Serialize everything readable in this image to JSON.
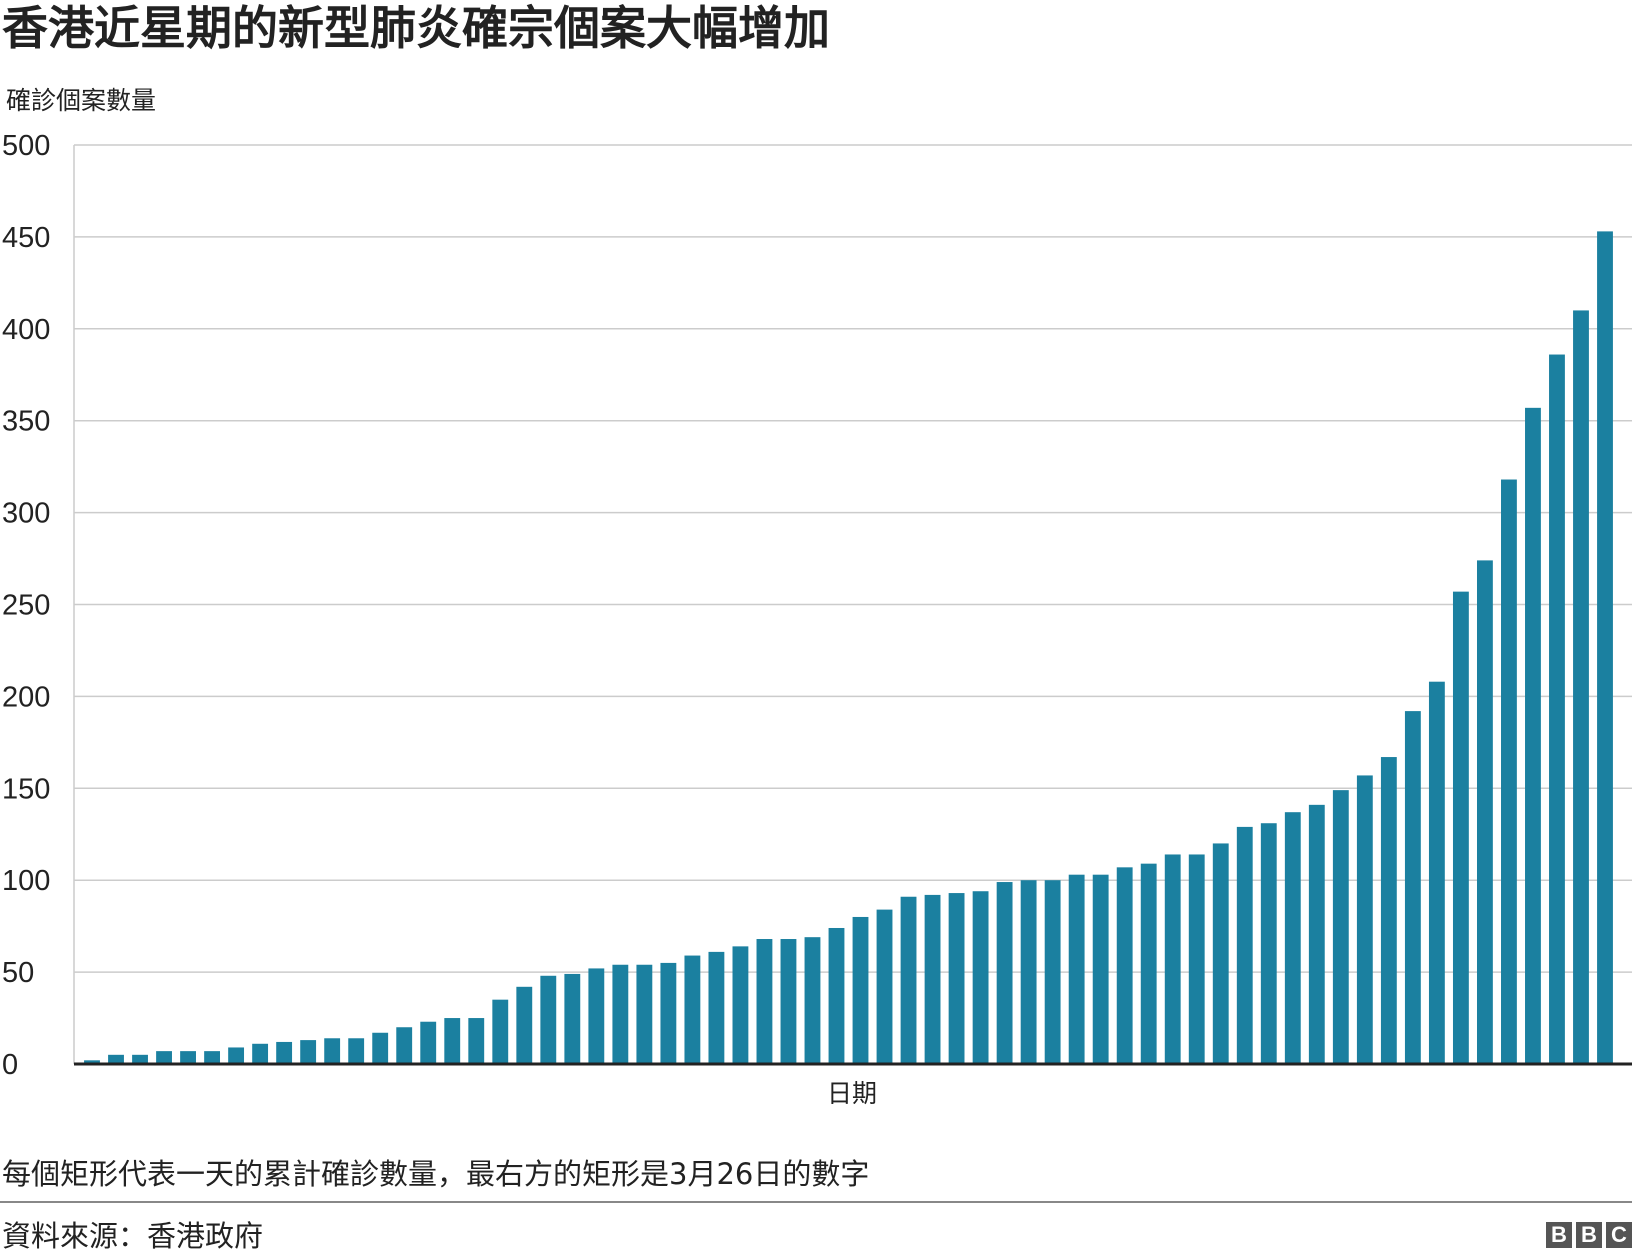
{
  "title": "香港近星期的新型肺炎確宗個案大幅增加",
  "note": "每個矩形代表一天的累計確診數量，最右方的矩形是3月26日的數字",
  "source": "資料來源：香港政府",
  "logo": {
    "letters": [
      "B",
      "B",
      "C"
    ]
  },
  "colors": {
    "bar": "#1b80a0",
    "grid": "#cccccc",
    "axis": "#222222"
  },
  "chart_data": {
    "type": "bar",
    "title": "香港近星期的新型肺炎確宗個案大幅增加",
    "xlabel": "日期",
    "ylabel": "確診個案數量",
    "ylim": [
      0,
      500
    ],
    "yticks": [
      0,
      50,
      100,
      150,
      200,
      250,
      300,
      350,
      400,
      450,
      500
    ],
    "grid": true,
    "values": [
      2,
      5,
      5,
      7,
      7,
      7,
      9,
      11,
      12,
      13,
      14,
      14,
      17,
      20,
      23,
      25,
      25,
      35,
      42,
      48,
      49,
      52,
      54,
      54,
      55,
      59,
      61,
      64,
      68,
      68,
      69,
      74,
      80,
      84,
      91,
      92,
      93,
      94,
      99,
      100,
      100,
      103,
      103,
      107,
      109,
      114,
      114,
      120,
      129,
      131,
      137,
      141,
      149,
      157,
      167,
      192,
      208,
      257,
      274,
      318,
      357,
      386,
      410,
      453
    ]
  }
}
